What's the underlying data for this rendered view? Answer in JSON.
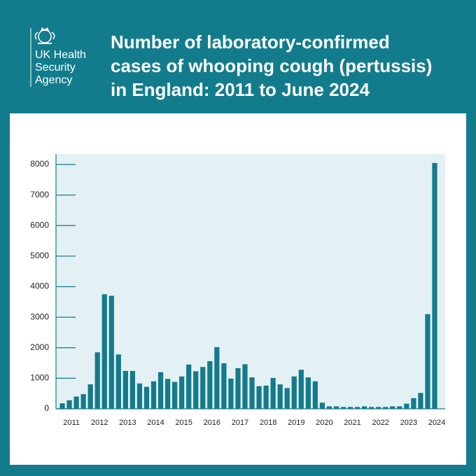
{
  "logo_text": [
    "UK Health",
    "Security",
    "Agency"
  ],
  "chart_data": {
    "type": "bar",
    "title": [
      "Number of laboratory-confirmed",
      "cases of whooping cough (pertussis)",
      "in England: 2011 to June 2024"
    ],
    "categories": [
      "2011",
      null,
      null,
      null,
      "2012",
      null,
      null,
      null,
      "2013",
      null,
      null,
      null,
      "2014",
      null,
      null,
      null,
      "2015",
      null,
      null,
      null,
      "2016",
      null,
      null,
      null,
      "2017",
      null,
      null,
      null,
      "2018",
      null,
      null,
      null,
      "2019",
      null,
      null,
      null,
      "2020",
      null,
      null,
      null,
      "2021",
      null,
      null,
      null,
      "2022",
      null,
      null,
      null,
      "2023",
      null,
      null,
      null,
      "2024",
      null
    ],
    "values": [
      180,
      280,
      400,
      480,
      800,
      1850,
      3750,
      3700,
      1780,
      1240,
      1240,
      830,
      720,
      900,
      1200,
      980,
      880,
      1060,
      1450,
      1230,
      1370,
      1560,
      2020,
      1490,
      990,
      1330,
      1460,
      1030,
      740,
      760,
      1010,
      800,
      680,
      1060,
      1280,
      1030,
      900,
      200,
      80,
      80,
      60,
      60,
      60,
      80,
      60,
      60,
      60,
      80,
      80,
      170,
      350,
      520,
      3100,
      8050
    ],
    "color": "#137b8b",
    "ylim": [
      0,
      8000
    ],
    "yticks": [
      0,
      1000,
      2000,
      3000,
      4000,
      5000,
      6000,
      7000,
      8000
    ]
  }
}
